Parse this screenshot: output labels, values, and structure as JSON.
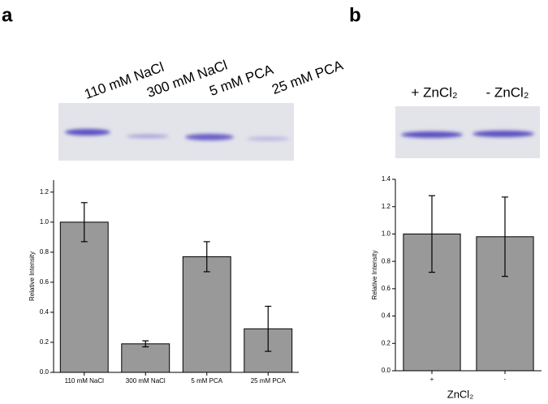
{
  "chart_data": [
    {
      "type": "bar",
      "panel_label": "a",
      "lane_labels": [
        "110 mM NaCl",
        "300 mM NaCl",
        "5 mM PCA",
        "25 mM PCA"
      ],
      "y_label": "Relative Intensity",
      "categories": [
        "110 mM NaCl",
        "300 mM NaCl",
        "5 mM PCA",
        "25 mM PCA"
      ],
      "values": [
        1.0,
        0.19,
        0.77,
        0.29
      ],
      "errors": [
        0.13,
        0.02,
        0.1,
        0.15
      ],
      "color": "#999999",
      "ylim": [
        0,
        1.28
      ],
      "yticks": [
        {
          "value": 0,
          "label": "0.0"
        },
        0.2,
        0.4,
        0.6,
        0.8,
        {
          "value": 1,
          "label": "1.0"
        },
        1.2
      ]
    },
    {
      "type": "bar",
      "panel_label": "b",
      "lane_labels": [
        "+ ZnCl₂",
        "- ZnCl₂"
      ],
      "y_label": "Relative Intensity",
      "x_label": "ZnCl₂",
      "categories": [
        "+",
        "-"
      ],
      "values": [
        1.0,
        0.98
      ],
      "errors": [
        0.28,
        0.29
      ],
      "color": "#999999",
      "ylim": [
        0,
        1.4
      ],
      "yticks": [
        {
          "value": 0,
          "label": "0.0"
        },
        0.2,
        0.4,
        0.6,
        0.8,
        {
          "value": 1,
          "label": "1.0"
        },
        1.2,
        1.4
      ]
    }
  ]
}
